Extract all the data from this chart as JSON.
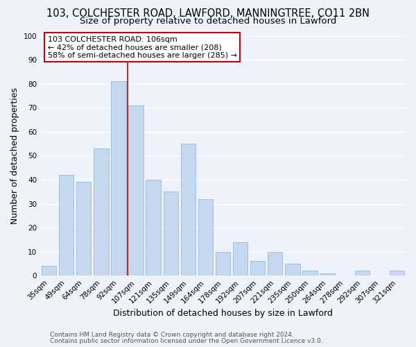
{
  "title": "103, COLCHESTER ROAD, LAWFORD, MANNINGTREE, CO11 2BN",
  "subtitle": "Size of property relative to detached houses in Lawford",
  "xlabel": "Distribution of detached houses by size in Lawford",
  "ylabel": "Number of detached properties",
  "categories": [
    "35sqm",
    "49sqm",
    "64sqm",
    "78sqm",
    "92sqm",
    "107sqm",
    "121sqm",
    "135sqm",
    "149sqm",
    "164sqm",
    "178sqm",
    "192sqm",
    "207sqm",
    "221sqm",
    "235sqm",
    "250sqm",
    "264sqm",
    "278sqm",
    "292sqm",
    "307sqm",
    "321sqm"
  ],
  "values": [
    4,
    42,
    39,
    53,
    81,
    71,
    40,
    35,
    55,
    32,
    10,
    14,
    6,
    10,
    5,
    2,
    1,
    0,
    2,
    0,
    2
  ],
  "bar_color": "#c5d8f0",
  "bar_edge_color": "#9ab8d8",
  "highlight_line_color": "#cc0000",
  "annotation_text": "103 COLCHESTER ROAD: 106sqm\n← 42% of detached houses are smaller (208)\n58% of semi-detached houses are larger (285) →",
  "annotation_box_color": "#ffffff",
  "annotation_box_edge_color": "#cc0000",
  "ylim": [
    0,
    100
  ],
  "footer_line1": "Contains HM Land Registry data © Crown copyright and database right 2024.",
  "footer_line2": "Contains public sector information licensed under the Open Government Licence v3.0.",
  "background_color": "#eef2fa",
  "grid_color": "#ffffff",
  "title_fontsize": 10.5,
  "subtitle_fontsize": 9.5,
  "axis_label_fontsize": 9,
  "tick_fontsize": 7.5,
  "annotation_fontsize": 8,
  "footer_fontsize": 6.5
}
